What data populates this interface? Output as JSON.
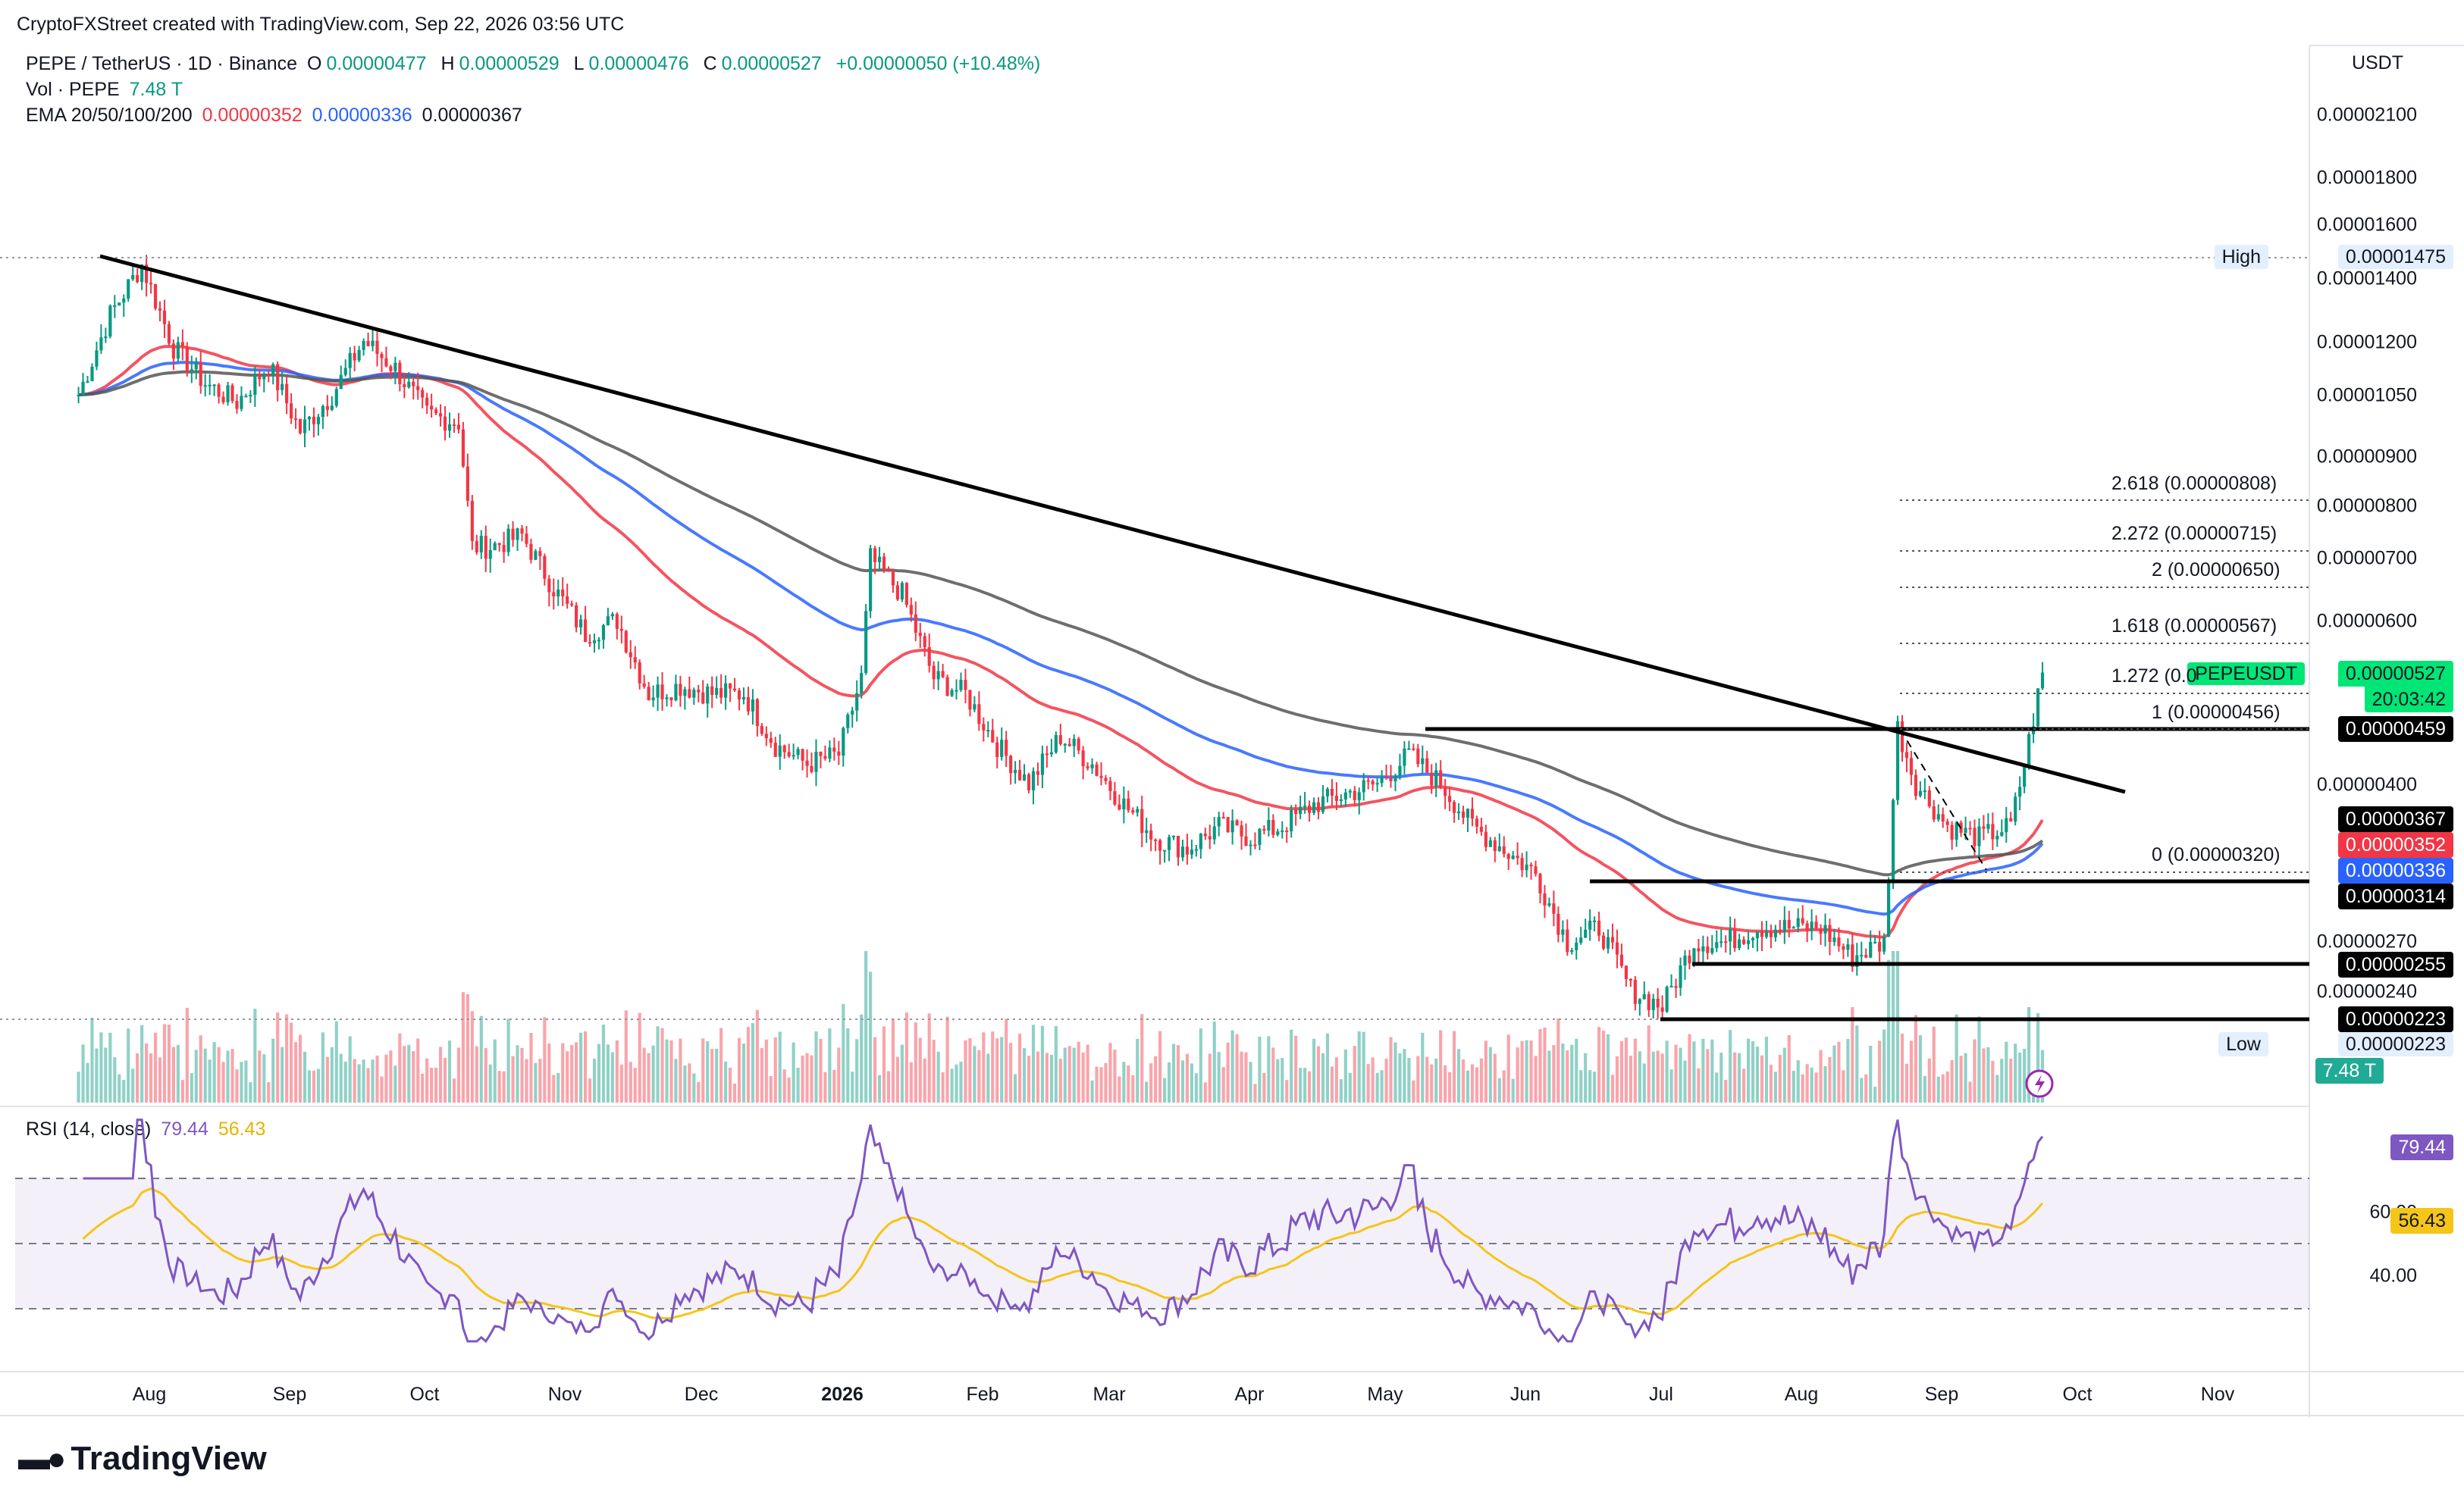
{
  "header": {
    "credit": "CryptoFXStreet created with TradingView.com, Sep 22, 2026 03:56 UTC"
  },
  "legend": {
    "symbol": "PEPE / TetherUS · 1D · Binance",
    "open_label": "O",
    "open": "0.00000477",
    "high_label": "H",
    "high": "0.00000529",
    "low_label": "L",
    "low": "0.00000476",
    "close_label": "C",
    "close": "0.00000527",
    "change": "+0.00000050 (+10.48%)",
    "vol_label": "Vol · PEPE",
    "vol": "7.48 T",
    "ema_label": "EMA 20/50/100/200",
    "ema20": "0.00000352",
    "ema50": "0.00000336",
    "ema100": "0.00000367",
    "rsi_label": "RSI (14, close)",
    "rsi": "79.44",
    "rsi_ma": "56.43"
  },
  "price_axis": {
    "currency": "USDT",
    "labels": [
      "0.00002100",
      "0.00001800",
      "0.00001600",
      "0.00001400",
      "0.00001200",
      "0.00001050",
      "0.00000900",
      "0.00000800",
      "0.00000700",
      "0.00000600",
      "0.00000400",
      "0.00000270",
      "0.00000240"
    ],
    "high_label": "High",
    "high_value": "0.00001475",
    "low_label": "Low",
    "low_value": "0.00000223",
    "tags": {
      "current_symbol": "PEPEUSDT",
      "current_price": "0.00000527",
      "countdown": "20:03:42",
      "level_459": "0.00000459",
      "ema100": "0.00000367",
      "ema20": "0.00000352",
      "ema50": "0.00000336",
      "level_314": "0.00000314",
      "level_255": "0.00000255",
      "level_223": "0.00000223",
      "volume": "7.48 T"
    }
  },
  "fibonacci": {
    "levels": [
      {
        "ratio": "2.618",
        "price": "0.00000808",
        "label": "2.618 (0.00000808)"
      },
      {
        "ratio": "2.272",
        "price": "0.00000715",
        "label": "2.272 (0.00000715)"
      },
      {
        "ratio": "2",
        "price": "0.00000650",
        "label": "2 (0.00000650)"
      },
      {
        "ratio": "1.618",
        "price": "0.00000567",
        "label": "1.618 (0.00000567)"
      },
      {
        "ratio": "1.272",
        "price": "",
        "label": "1.272 (0.0"
      },
      {
        "ratio": "1",
        "price": "0.00000456",
        "label": "1 (0.00000456)"
      },
      {
        "ratio": "0",
        "price": "0.00000320",
        "label": "0 (0.00000320)"
      }
    ]
  },
  "rsi_axis": {
    "labels": [
      "60.00",
      "40.00"
    ],
    "rsi_tag": "79.44",
    "ma_tag": "56.43"
  },
  "time_axis": {
    "labels": [
      "Aug",
      "Sep",
      "Oct",
      "Nov",
      "Dec",
      "2026",
      "Feb",
      "Mar",
      "Apr",
      "May",
      "Jun",
      "Jul",
      "Aug",
      "Sep",
      "Oct",
      "Nov"
    ]
  },
  "brand": {
    "name": "TradingView"
  },
  "colors": {
    "up": "#089981",
    "down": "#f23645",
    "ema20": "#f23645",
    "ema50": "#2962ff",
    "ema100": "#131722",
    "ema200": "#555555",
    "rsi": "#7e57c2",
    "rsi_ma": "#f5c518",
    "current": "#00e676"
  },
  "chart_data": {
    "type": "line",
    "title": "PEPE / TetherUS · 1D · Binance",
    "scale": "log",
    "ylim": [
      2e-06,
      2.2e-05
    ],
    "x": [
      "2025-07-15",
      "2025-07-22",
      "2025-07-29",
      "2025-08-05",
      "2025-08-12",
      "2025-08-19",
      "2025-08-26",
      "2025-09-02",
      "2025-09-09",
      "2025-09-16",
      "2025-09-23",
      "2025-09-30",
      "2025-10-07",
      "2025-10-10",
      "2025-10-14",
      "2025-10-21",
      "2025-10-28",
      "2025-11-04",
      "2025-11-11",
      "2025-11-18",
      "2025-11-25",
      "2025-12-02",
      "2025-12-09",
      "2025-12-16",
      "2025-12-23",
      "2025-12-30",
      "2026-01-04",
      "2026-01-06",
      "2026-01-13",
      "2026-01-20",
      "2026-01-27",
      "2026-02-03",
      "2026-02-10",
      "2026-02-17",
      "2026-02-24",
      "2026-03-03",
      "2026-03-10",
      "2026-03-17",
      "2026-03-24",
      "2026-03-31",
      "2026-04-07",
      "2026-04-14",
      "2026-04-21",
      "2026-04-28",
      "2026-05-05",
      "2026-05-12",
      "2026-05-19",
      "2026-05-26",
      "2026-06-02",
      "2026-06-09",
      "2026-06-16",
      "2026-06-23",
      "2026-06-30",
      "2026-07-07",
      "2026-07-14",
      "2026-07-21",
      "2026-07-28",
      "2026-08-04",
      "2026-08-11",
      "2026-08-18",
      "2026-08-21",
      "2026-08-25",
      "2026-09-01",
      "2026-09-08",
      "2026-09-15",
      "2026-09-18",
      "2026-09-22"
    ],
    "series": [
      {
        "name": "PEPE / TetherUS",
        "values": [
          1.05e-05,
          1.28e-05,
          1.45e-05,
          1.18e-05,
          1.08e-05,
          1.03e-05,
          1.13e-05,
          9.6e-06,
          1.05e-05,
          1.2e-05,
          1.12e-05,
          1e-05,
          9.8e-06,
          7.2e-06,
          7.2e-06,
          7.4e-06,
          6.5e-06,
          5.8e-06,
          6e-06,
          5e-06,
          5.1e-06,
          5e-06,
          5e-06,
          4.4e-06,
          4.2e-06,
          4.3e-06,
          5.2e-06,
          7e-06,
          6.4e-06,
          5.2e-06,
          5e-06,
          4.4e-06,
          4e-06,
          4.5e-06,
          4.2e-06,
          3.8e-06,
          3.5e-06,
          3.4e-06,
          3.6e-06,
          3.5e-06,
          3.6e-06,
          3.8e-06,
          3.9e-06,
          4e-06,
          4.3e-06,
          4e-06,
          3.6e-06,
          3.4e-06,
          3.2e-06,
          2.7e-06,
          2.8e-06,
          2.4e-06,
          2.3e-06,
          2.7e-06,
          2.7e-06,
          2.8e-06,
          2.8e-06,
          2.8e-06,
          2.6e-06,
          2.7e-06,
          4.6e-06,
          4e-06,
          3.6e-06,
          3.5e-06,
          3.6e-06,
          4.2e-06,
          5.27e-06
        ]
      }
    ]
  }
}
